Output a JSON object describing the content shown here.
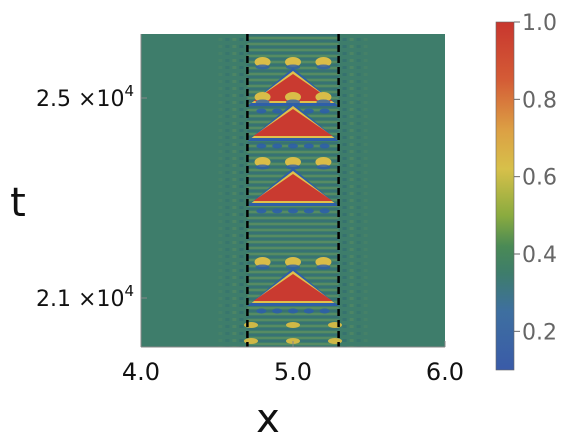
{
  "chart_data": {
    "type": "heatmap",
    "xlabel": "x",
    "ylabel": "t",
    "xlim": [
      4.0,
      6.0
    ],
    "x_ticks": [
      {
        "value": 4.0,
        "label": "4.0"
      },
      {
        "value": 5.0,
        "label": "5.0"
      },
      {
        "value": 6.0,
        "label": "6.0"
      }
    ],
    "y_ticks": [
      {
        "value": 21000,
        "label_base": "2.1",
        "label_exp": "4"
      },
      {
        "value": 25000,
        "label_base": "2.5",
        "label_exp": "4"
      }
    ],
    "y_tick_mult": "×10",
    "colorbar": {
      "range": [
        0.1,
        1.0
      ],
      "ticks": [
        "1.0",
        "0.8",
        "0.6",
        "0.4",
        "0.2"
      ],
      "tick_values": [
        1.0,
        0.8,
        0.6,
        0.4,
        0.2
      ],
      "colors": [
        "#3a5ba8",
        "#3e6fa0",
        "#3e7d6b",
        "#4a8a55",
        "#8aab3f",
        "#d7c04a",
        "#dca044",
        "#d45c36",
        "#c8362e"
      ],
      "color_stops": [
        0.1,
        0.25,
        0.35,
        0.42,
        0.5,
        0.62,
        0.72,
        0.85,
        1.0
      ]
    },
    "background_value": 0.4,
    "domain_boundaries_x": [
      4.7,
      5.3
    ],
    "stripes": [
      {
        "t": 25000,
        "peak": 1.0,
        "half_width": 0.26
      },
      {
        "t": 24300,
        "peak": 1.0,
        "half_width": 0.26
      },
      {
        "t": 23000,
        "peak": 1.0,
        "half_width": 0.26
      },
      {
        "t": 21000,
        "peak": 1.0,
        "half_width": 0.26
      }
    ],
    "colors": {
      "background": "#3e7d6b",
      "boundary_line": "#000000"
    }
  }
}
